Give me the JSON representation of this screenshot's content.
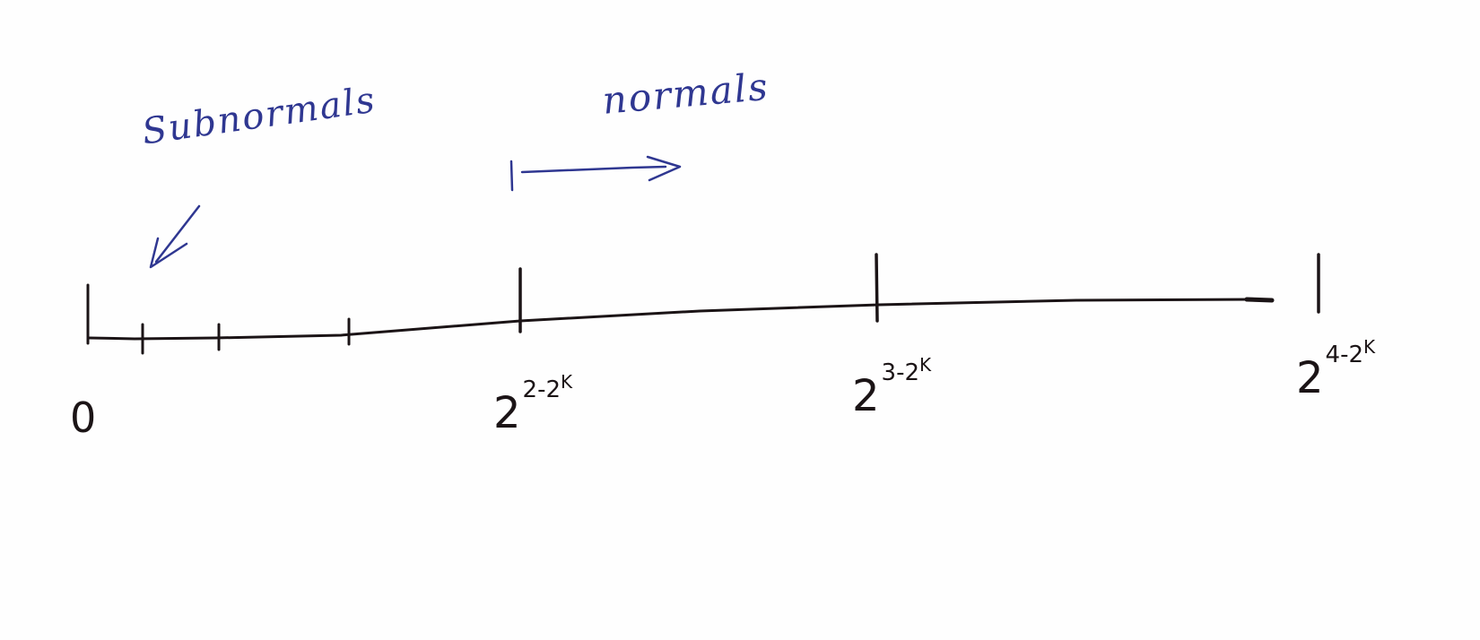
{
  "number_line": {
    "origin_label": "0",
    "tick_labels": [
      {
        "base": "2",
        "exponent": "2-2",
        "exponent_sup": "K"
      },
      {
        "base": "2",
        "exponent": "3-2",
        "exponent_sup": "K"
      },
      {
        "base": "2",
        "exponent": "4-2",
        "exponent_sup": "K"
      }
    ]
  },
  "annotations": {
    "subnormals": "Subnormals",
    "normals": "normals"
  },
  "colors": {
    "ink_black": "#1b1416",
    "ink_blue": "#2f3791"
  }
}
